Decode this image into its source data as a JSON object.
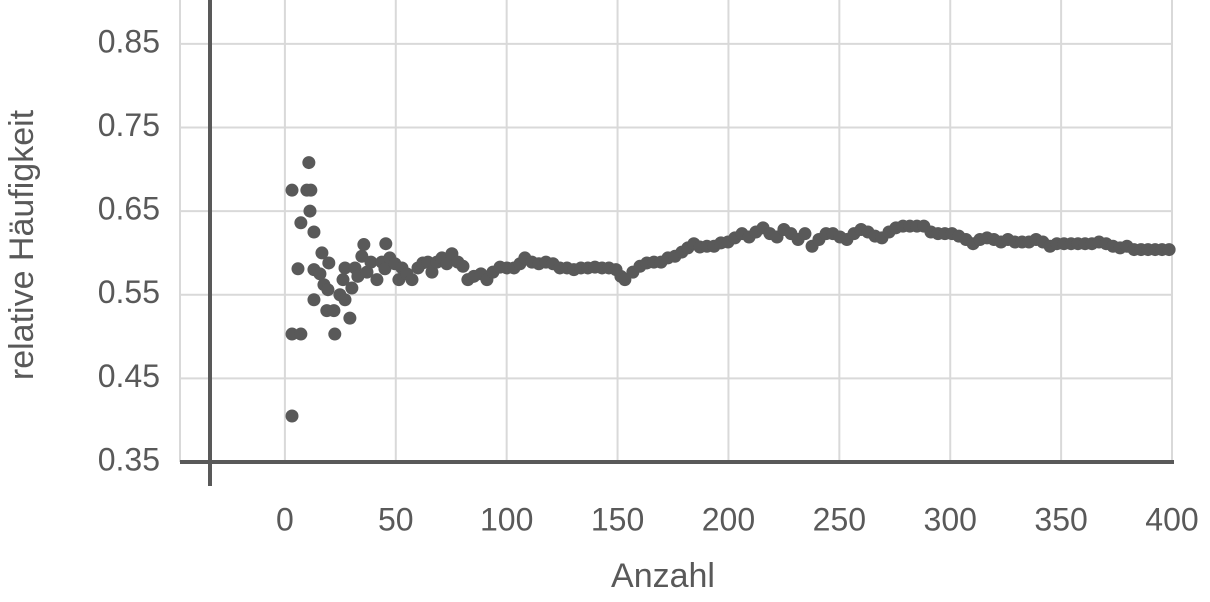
{
  "chart_data": {
    "type": "scatter",
    "x_label": "Anzahl",
    "y_label": "relative Häufigkeit",
    "color": "#595959",
    "grid": true,
    "xlim": [
      -47.3,
      400
    ],
    "ylim": [
      0.35,
      0.9
    ],
    "xticks": [
      0,
      50,
      100,
      150,
      200,
      250,
      300,
      350,
      400
    ],
    "yticks": [
      0.35,
      0.45,
      0.55,
      0.65,
      0.75,
      0.85
    ],
    "x": [
      3.2,
      3.2,
      3.2,
      5.9,
      7.2,
      7.2,
      9.9,
      10.8,
      11.7,
      11.3,
      13.1,
      13.1,
      13.1,
      15.8,
      16.7,
      17.6,
      18.9,
      19.8,
      19.4,
      22.1,
      22.5,
      24.8,
      26.2,
      27.1,
      27.1,
      29.3,
      30.2,
      31.6,
      32.9,
      34.7,
      35.6,
      37,
      38.8,
      41.5,
      43.7,
      45.1,
      45.5,
      47.3,
      49.6,
      51.4,
      52.8,
      55,
      57.3,
      60,
      62.2,
      64.5,
      66.3,
      68.5,
      70.8,
      73,
      75.3,
      78,
      80.3,
      82.5,
      85.2,
      88.4,
      91.1,
      93.8,
      97,
      100.1,
      103.3,
      106,
      108.2,
      111.4,
      114.5,
      117.7,
      120.9,
      124,
      127.2,
      130.3,
      133.5,
      136.6,
      139.8,
      143,
      146.1,
      149.3,
      151.5,
      153.3,
      156.9,
      160.1,
      163.2,
      166.4,
      169.6,
      172.7,
      175.9,
      179,
      181.7,
      184.4,
      187.1,
      190.3,
      193.5,
      196.6,
      199.8,
      202.9,
      206.1,
      209.3,
      212.4,
      215.6,
      218.7,
      221.9,
      225,
      228.2,
      231.4,
      234.5,
      237.7,
      240.8,
      244,
      247.1,
      250.3,
      253.4,
      256.6,
      259.8,
      262.9,
      266.1,
      269.2,
      272.4,
      275.5,
      278.7,
      281.8,
      285,
      288.1,
      291.3,
      294.5,
      297.6,
      300.8,
      303.9,
      307.1,
      310.3,
      313.4,
      316.6,
      319.7,
      322.9,
      326,
      329.2,
      332.4,
      335.5,
      338.7,
      341.8,
      345,
      348.1,
      351.3,
      354.5,
      357.6,
      360.8,
      363.9,
      367.1,
      370.3,
      373.4,
      376.6,
      379.7,
      382.9,
      386,
      389.2,
      392.4,
      395.5,
      398.7
    ],
    "values": [
      0.405,
      0.675,
      0.503,
      0.581,
      0.503,
      0.636,
      0.675,
      0.708,
      0.675,
      0.65,
      0.625,
      0.544,
      0.58,
      0.575,
      0.6,
      0.562,
      0.531,
      0.588,
      0.556,
      0.531,
      0.503,
      0.55,
      0.568,
      0.544,
      0.582,
      0.522,
      0.558,
      0.582,
      0.572,
      0.596,
      0.61,
      0.577,
      0.589,
      0.568,
      0.589,
      0.581,
      0.611,
      0.594,
      0.587,
      0.568,
      0.582,
      0.575,
      0.568,
      0.582,
      0.588,
      0.589,
      0.577,
      0.589,
      0.594,
      0.587,
      0.599,
      0.589,
      0.584,
      0.568,
      0.572,
      0.575,
      0.568,
      0.577,
      0.583,
      0.582,
      0.582,
      0.587,
      0.594,
      0.589,
      0.587,
      0.589,
      0.587,
      0.582,
      0.582,
      0.58,
      0.582,
      0.582,
      0.583,
      0.582,
      0.582,
      0.58,
      0.572,
      0.568,
      0.577,
      0.584,
      0.588,
      0.589,
      0.589,
      0.594,
      0.596,
      0.601,
      0.606,
      0.611,
      0.607,
      0.608,
      0.608,
      0.612,
      0.613,
      0.618,
      0.623,
      0.619,
      0.625,
      0.63,
      0.623,
      0.619,
      0.628,
      0.623,
      0.616,
      0.623,
      0.608,
      0.616,
      0.623,
      0.623,
      0.619,
      0.616,
      0.623,
      0.628,
      0.625,
      0.62,
      0.618,
      0.625,
      0.63,
      0.632,
      0.632,
      0.632,
      0.632,
      0.625,
      0.623,
      0.623,
      0.623,
      0.62,
      0.616,
      0.611,
      0.616,
      0.618,
      0.616,
      0.613,
      0.616,
      0.613,
      0.613,
      0.613,
      0.616,
      0.613,
      0.608,
      0.611,
      0.611,
      0.611,
      0.611,
      0.611,
      0.611,
      0.613,
      0.611,
      0.608,
      0.606,
      0.608,
      0.604,
      0.604,
      0.604,
      0.604,
      0.604,
      0.604
    ]
  }
}
